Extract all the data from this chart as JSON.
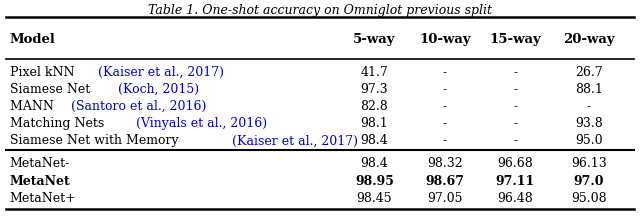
{
  "title": "Table 1. One-shot accuracy on Omniglot previous split",
  "columns": [
    "Model",
    "5-way",
    "10-way",
    "15-way",
    "20-way"
  ],
  "rows": [
    {
      "model_plain": "Pixel kNN ",
      "model_cite": "(Kaiser et al., 2017)",
      "values": [
        "41.7",
        "-",
        "-",
        "26.7"
      ],
      "bold": false,
      "group": "baseline"
    },
    {
      "model_plain": "Siamese Net ",
      "model_cite": "(Koch, 2015)",
      "values": [
        "97.3",
        "-",
        "-",
        "88.1"
      ],
      "bold": false,
      "group": "baseline"
    },
    {
      "model_plain": "MANN ",
      "model_cite": "(Santoro et al., 2016)",
      "values": [
        "82.8",
        "-",
        "-",
        "-"
      ],
      "bold": false,
      "group": "baseline"
    },
    {
      "model_plain": "Matching Nets ",
      "model_cite": "(Vinyals et al., 2016)",
      "values": [
        "98.1",
        "-",
        "-",
        "93.8"
      ],
      "bold": false,
      "group": "baseline"
    },
    {
      "model_plain": "Siamese Net with Memory ",
      "model_cite": "(Kaiser et al., 2017)",
      "values": [
        "98.4",
        "-",
        "-",
        "95.0"
      ],
      "bold": false,
      "group": "baseline"
    },
    {
      "model_plain": "MetaNet-",
      "model_cite": "",
      "values": [
        "98.4",
        "98.32",
        "96.68",
        "96.13"
      ],
      "bold": false,
      "group": "metanet"
    },
    {
      "model_plain": "MetaNet",
      "model_cite": "",
      "values": [
        "98.95",
        "98.67",
        "97.11",
        "97.0"
      ],
      "bold": true,
      "group": "metanet"
    },
    {
      "model_plain": "MetaNet+",
      "model_cite": "",
      "values": [
        "98.45",
        "97.05",
        "96.48",
        "95.08"
      ],
      "bold": false,
      "group": "metanet"
    }
  ],
  "cite_color": "#0000CD",
  "header_color": "#000000",
  "text_color": "#000000",
  "bg_color": "#ffffff",
  "title_fontsize": 9.0,
  "header_fontsize": 9.5,
  "cell_fontsize": 9.0,
  "figsize": [
    6.4,
    2.18
  ]
}
